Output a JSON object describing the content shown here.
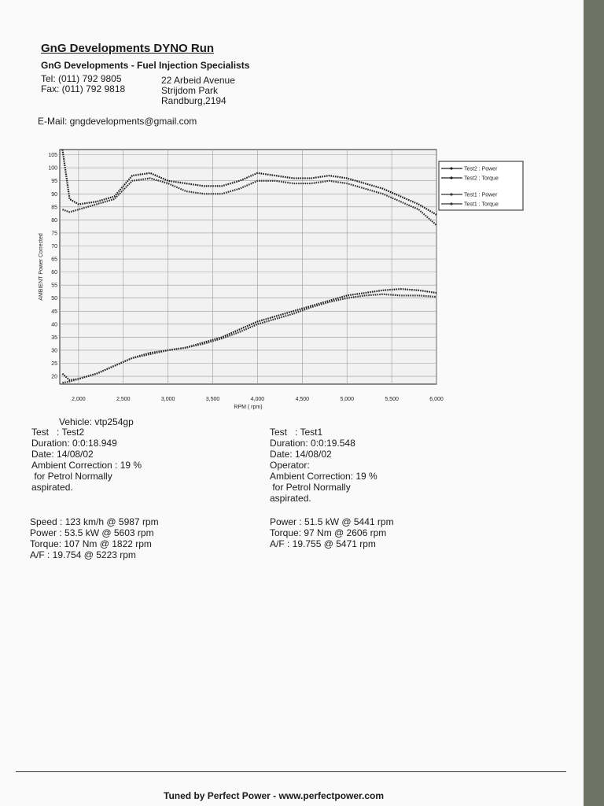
{
  "header": {
    "title": "GnG Developments DYNO Run",
    "subtitle": "GnG Developments - Fuel Injection Specialists",
    "tel": "Tel: (011) 792 9805",
    "fax": "Fax: (011) 792 9818",
    "address": [
      "22 Arbeid Avenue",
      "Strijdom Park",
      "Randburg,2194"
    ],
    "email": "E-Mail: gngdevelopments@gmail.com"
  },
  "chart_data": {
    "type": "line",
    "ylabel": "AMBIENT Power Corrected",
    "xlabel": "RPM ( rpm)",
    "x": [
      1820,
      1900,
      2000,
      2200,
      2400,
      2600,
      2800,
      3000,
      3200,
      3400,
      3600,
      3800,
      4000,
      4200,
      4400,
      4600,
      4800,
      5000,
      5200,
      5400,
      5600,
      5800,
      6000
    ],
    "series": [
      {
        "name": "Test2 : Power",
        "color": "#1e1e1e",
        "values": [
          21,
          18.5,
          19,
          21,
          24,
          27,
          29,
          30,
          31,
          33,
          35,
          38,
          41,
          43,
          45,
          47,
          49,
          51,
          52,
          53,
          53.5,
          53,
          52
        ]
      },
      {
        "name": "Test2 : Torque",
        "color": "#1e1e1e",
        "values": [
          107,
          88,
          86,
          87,
          89,
          97,
          98,
          95,
          94,
          93,
          93,
          95,
          98,
          97,
          96,
          96,
          97,
          96,
          94,
          92,
          89,
          86,
          82
        ]
      },
      {
        "name": "Test1 : Power",
        "color": "#333333",
        "values": [
          17.5,
          18,
          19,
          21,
          24,
          27,
          28.5,
          30,
          31,
          32.5,
          34.5,
          37,
          40,
          42,
          44,
          46.5,
          48.5,
          50,
          51,
          51.5,
          51,
          51,
          50.5
        ]
      },
      {
        "name": "Test1 : Torque",
        "color": "#333333",
        "values": [
          84,
          83,
          84,
          86,
          88,
          95,
          96,
          94,
          91,
          90,
          90,
          92,
          95,
          95,
          94,
          94,
          95,
          94,
          92,
          90,
          87,
          84,
          78
        ]
      }
    ],
    "xlim": [
      1790,
      6000
    ],
    "ylim": [
      17,
      107
    ],
    "xticks": [
      {
        "value": 2000,
        "label": "2,000"
      },
      {
        "value": 2500,
        "label": "2,500"
      },
      {
        "value": 3000,
        "label": "3,000"
      },
      {
        "value": 3500,
        "label": "3,500"
      },
      {
        "value": 4000,
        "label": "4,000"
      },
      {
        "value": 4500,
        "label": "4,500"
      },
      {
        "value": 5000,
        "label": "5,000"
      },
      {
        "value": 5500,
        "label": "5,500"
      },
      {
        "value": 6000,
        "label": "6,000"
      }
    ],
    "yticks": [
      20,
      25,
      30,
      35,
      40,
      45,
      50,
      55,
      60,
      65,
      70,
      75,
      80,
      85,
      90,
      95,
      100,
      105
    ],
    "grid": true,
    "legend": "outside-right"
  },
  "vehicle": "Vehicle: vtp254gp",
  "left_block": [
    "Test   : Test2",
    "Duration: 0:0:18.949",
    "Date: 14/08/02",
    "Ambient Correction : 19 %",
    " for Petrol Normally",
    "aspirated."
  ],
  "right_block": [
    "Test   : Test1",
    "Duration: 0:0:19.548",
    "Date: 14/08/02",
    "Operator:",
    "Ambient Correction: 19 %",
    " for Petrol Normally",
    "aspirated."
  ],
  "left_summary": [
    "Speed : 123 km/h @ 5987 rpm",
    "Power : 53.5 kW @ 5603 rpm",
    "Torque: 107 Nm @ 1822 rpm",
    "A/F : 19.754 @ 5223 rpm"
  ],
  "right_summary": [
    "Power : 51.5 kW @ 5441 rpm",
    "Torque: 97 Nm @ 2606 rpm",
    "A/F : 19.755 @ 5471 rpm"
  ],
  "footer": "Tuned by Perfect Power - www.perfectpower.com"
}
